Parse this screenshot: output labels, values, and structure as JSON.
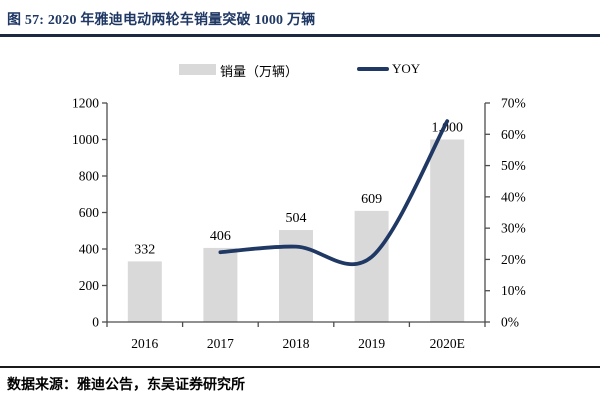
{
  "figure": {
    "title": "图 57:  2020 年雅迪电动两轮车销量突破 1000 万辆",
    "source_note": "数据来源：雅迪公告，东吴证券研究所"
  },
  "legend": {
    "bar_label": "销量（万辆）",
    "line_label": "YOY"
  },
  "colors": {
    "bar_fill": "#d9d9d9",
    "line_stroke": "#1f3864",
    "title_text": "#1f3864",
    "axis_stroke": "#4d4d4d",
    "label_text": "#000000"
  },
  "chart_data": {
    "type": "bar",
    "subtype": "combo-bar-line",
    "title": "2020 年雅迪电动两轮车销量突破 1000 万辆",
    "categories": [
      "2016",
      "2017",
      "2018",
      "2019",
      "2020E"
    ],
    "series": [
      {
        "name": "销量（万辆）",
        "type": "bar",
        "axis": "left",
        "values": [
          332,
          406,
          504,
          609,
          1000
        ],
        "labels": [
          "332",
          "406",
          "504",
          "609",
          "1,000"
        ]
      },
      {
        "name": "YOY",
        "type": "line",
        "axis": "right",
        "values": [
          null,
          22.3,
          24.1,
          20.8,
          64.2
        ]
      }
    ],
    "left_axis": {
      "min": 0,
      "max": 1200,
      "step": 200,
      "ticks": [
        "0",
        "200",
        "400",
        "600",
        "800",
        "1000",
        "1200"
      ]
    },
    "right_axis": {
      "min": 0,
      "max": 70,
      "step": 10,
      "ticks": [
        "0%",
        "10%",
        "20%",
        "30%",
        "40%",
        "50%",
        "60%",
        "70%"
      ]
    },
    "grid": false,
    "legend_position": "top",
    "smooth_line": true
  }
}
